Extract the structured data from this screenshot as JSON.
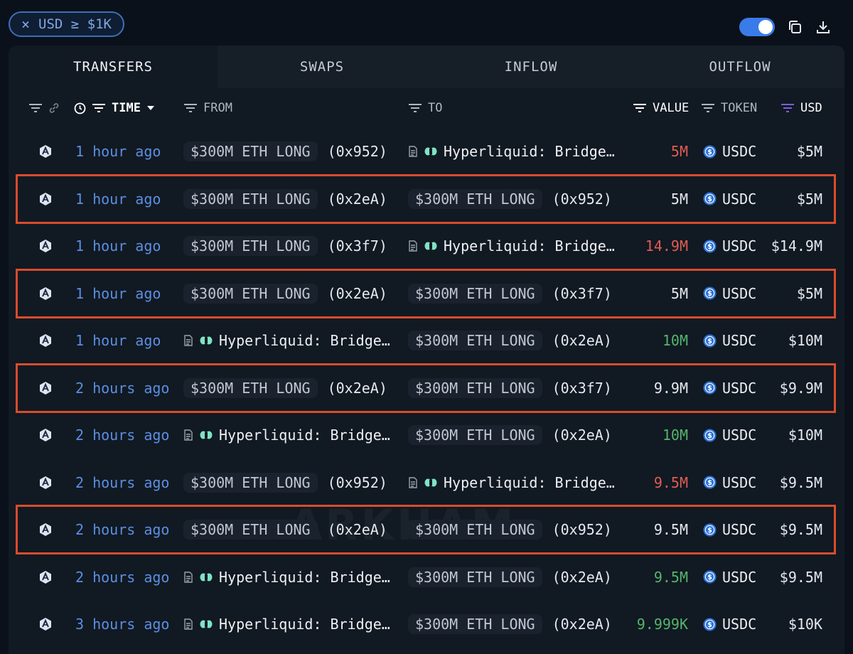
{
  "filter_chip": {
    "close": "×",
    "label": "USD ≥ $1K"
  },
  "tabs": [
    "TRANSFERS",
    "SWAPS",
    "INFLOW",
    "OUTFLOW"
  ],
  "header": {
    "time": "TIME",
    "from": "FROM",
    "to": "TO",
    "value": "VALUE",
    "token": "TOKEN",
    "usd": "USD"
  },
  "watermark": "ARKHAM",
  "rows": [
    {
      "time": "1 hour ago",
      "from_label": "$300M ETH LONG",
      "from_addr": "(0x952)",
      "to_label": "Hyperliquid: Bridge…",
      "value": "5M",
      "value_color": "#e05c52",
      "token": "USDC",
      "usd": "$5M"
    },
    {
      "time": "1 hour ago",
      "from_label": "$300M ETH LONG",
      "from_addr": "(0x2eA)",
      "to_label": "$300M ETH LONG",
      "to_addr": "(0x952)",
      "value": "5M",
      "value_color": "#e6e9ee",
      "token": "USDC",
      "usd": "$5M"
    },
    {
      "time": "1 hour ago",
      "from_label": "$300M ETH LONG",
      "from_addr": "(0x3f7)",
      "to_label": "Hyperliquid: Bridge…",
      "value": "14.9M",
      "value_color": "#e05c52",
      "token": "USDC",
      "usd": "$14.9M"
    },
    {
      "time": "1 hour ago",
      "from_label": "$300M ETH LONG",
      "from_addr": "(0x2eA)",
      "to_label": "$300M ETH LONG",
      "to_addr": "(0x3f7)",
      "value": "5M",
      "value_color": "#e6e9ee",
      "token": "USDC",
      "usd": "$5M"
    },
    {
      "time": "1 hour ago",
      "from_label": "Hyperliquid: Bridge…",
      "to_label": "$300M ETH LONG",
      "to_addr": "(0x2eA)",
      "value": "10M",
      "value_color": "#55b56a",
      "token": "USDC",
      "usd": "$10M"
    },
    {
      "time": "2 hours ago",
      "from_label": "$300M ETH LONG",
      "from_addr": "(0x2eA)",
      "to_label": "$300M ETH LONG",
      "to_addr": "(0x3f7)",
      "value": "9.9M",
      "value_color": "#e6e9ee",
      "token": "USDC",
      "usd": "$9.9M"
    },
    {
      "time": "2 hours ago",
      "from_label": "Hyperliquid: Bridge…",
      "to_label": "$300M ETH LONG",
      "to_addr": "(0x2eA)",
      "value": "10M",
      "value_color": "#55b56a",
      "token": "USDC",
      "usd": "$10M"
    },
    {
      "time": "2 hours ago",
      "from_label": "$300M ETH LONG",
      "from_addr": "(0x952)",
      "to_label": "Hyperliquid: Bridge…",
      "value": "9.5M",
      "value_color": "#e05c52",
      "token": "USDC",
      "usd": "$9.5M"
    },
    {
      "time": "2 hours ago",
      "from_label": "$300M ETH LONG",
      "from_addr": "(0x2eA)",
      "to_label": "$300M ETH LONG",
      "to_addr": "(0x952)",
      "value": "9.5M",
      "value_color": "#e6e9ee",
      "token": "USDC",
      "usd": "$9.5M"
    },
    {
      "time": "2 hours ago",
      "from_label": "Hyperliquid: Bridge…",
      "to_label": "$300M ETH LONG",
      "to_addr": "(0x2eA)",
      "value": "9.5M",
      "value_color": "#55b56a",
      "token": "USDC",
      "usd": "$9.5M"
    },
    {
      "time": "3 hours ago",
      "from_label": "Hyperliquid: Bridge…",
      "to_label": "$300M ETH LONG",
      "to_addr": "(0x2eA)",
      "value": "9.999K",
      "value_color": "#55b56a",
      "token": "USDC",
      "usd": "$10K"
    }
  ],
  "highlighted_rows": [
    1,
    3,
    5,
    8
  ],
  "colors": {
    "accent": "#3a7bea",
    "highlight_border": "#d94c2a",
    "time_link": "#5b8fe0"
  }
}
